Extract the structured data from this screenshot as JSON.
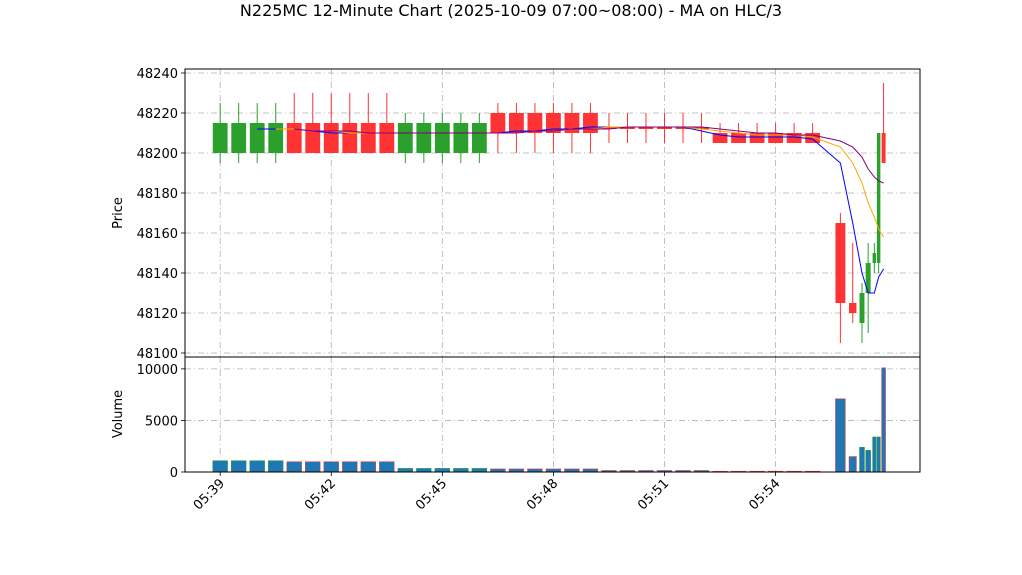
{
  "chart_data": {
    "type": "candlestick",
    "title": "N225MC 12-Minute Chart (2025-10-09 07:00~08:00) - MA on HLC/3",
    "y_label": "Price",
    "volume_label": "Volume",
    "x": [
      "05:39:00",
      "05:39:30",
      "05:40:00",
      "05:40:30",
      "05:41:00",
      "05:41:30",
      "05:42:00",
      "05:42:30",
      "05:43:00",
      "05:43:30",
      "05:44:00",
      "05:44:30",
      "05:45:00",
      "05:45:30",
      "05:46:00",
      "05:46:30",
      "05:47:00",
      "05:47:30",
      "05:48:00",
      "05:48:30",
      "05:49:00",
      "05:49:30",
      "05:50:00",
      "05:50:30",
      "05:51:00",
      "05:51:30",
      "05:52:00",
      "05:52:30",
      "05:53:00",
      "05:53:30",
      "05:54:00",
      "05:54:30",
      "05:55:00",
      "05:55:45",
      "05:56:05",
      "05:56:20",
      "05:56:30",
      "05:56:40",
      "05:56:47",
      "05:56:55"
    ],
    "open": [
      48200,
      48200,
      48200,
      48200,
      48215,
      48215,
      48215,
      48215,
      48215,
      48215,
      48200,
      48200,
      48200,
      48200,
      48200,
      48220,
      48220,
      48220,
      48220,
      48220,
      48220,
      48213,
      48213,
      48213,
      48213,
      48213,
      48213,
      48210,
      48210,
      48210,
      48210,
      48210,
      48210,
      48165,
      48125,
      48115,
      48130,
      48145,
      48145,
      48210
    ],
    "close": [
      48215,
      48215,
      48215,
      48215,
      48200,
      48200,
      48200,
      48200,
      48200,
      48200,
      48215,
      48215,
      48215,
      48215,
      48215,
      48210,
      48210,
      48210,
      48210,
      48210,
      48210,
      48212,
      48212,
      48212,
      48212,
      48212,
      48212,
      48205,
      48205,
      48205,
      48205,
      48205,
      48205,
      48125,
      48120,
      48130,
      48145,
      48150,
      48210,
      48195
    ],
    "high": [
      48225,
      48225,
      48225,
      48225,
      48230,
      48230,
      48230,
      48230,
      48230,
      48230,
      48220,
      48220,
      48220,
      48220,
      48220,
      48225,
      48225,
      48225,
      48225,
      48225,
      48225,
      48220,
      48220,
      48220,
      48220,
      48220,
      48220,
      48215,
      48215,
      48215,
      48215,
      48215,
      48215,
      48170,
      48155,
      48135,
      48155,
      48155,
      48210,
      48235
    ],
    "low": [
      48195,
      48195,
      48195,
      48195,
      48200,
      48200,
      48200,
      48200,
      48200,
      48200,
      48195,
      48195,
      48195,
      48195,
      48195,
      48200,
      48200,
      48200,
      48200,
      48200,
      48200,
      48205,
      48205,
      48205,
      48205,
      48205,
      48205,
      48205,
      48205,
      48205,
      48205,
      48205,
      48205,
      48105,
      48115,
      48105,
      48110,
      48140,
      48140,
      48195
    ],
    "volume": [
      1100,
      1100,
      1100,
      1100,
      1000,
      1000,
      1000,
      1000,
      1000,
      1000,
      350,
      350,
      350,
      350,
      350,
      300,
      300,
      300,
      300,
      300,
      300,
      150,
      150,
      150,
      150,
      150,
      150,
      80,
      80,
      80,
      80,
      80,
      80,
      7100,
      1500,
      2400,
      2100,
      3400,
      3400,
      10100
    ],
    "up_color": "#2ca02c",
    "down_color": "#ff3333",
    "volume_color": "#1f77b4",
    "series": [
      {
        "color": "#0000ff",
        "values": [
          null,
          null,
          48212,
          48212,
          48212,
          48211,
          48210,
          48210,
          48210,
          48210,
          48210,
          48210,
          48210,
          48210,
          48210,
          48210,
          48211,
          48211,
          48212,
          48212,
          48213,
          48213,
          48213,
          48213,
          48213,
          48213,
          48211,
          48209,
          48208,
          48208,
          48208,
          48208,
          48207,
          48195,
          48165,
          48140,
          48130,
          48130,
          48138,
          48142
        ]
      },
      {
        "color": "#ffa500",
        "values": [
          null,
          null,
          null,
          48212,
          48212,
          48211,
          48211,
          48210,
          48210,
          48210,
          48210,
          48210,
          48210,
          48210,
          48210,
          48210,
          48210,
          48211,
          48211,
          48212,
          48212,
          48213,
          48213,
          48213,
          48213,
          48213,
          48212,
          48211,
          48210,
          48209,
          48209,
          48209,
          48208,
          48203,
          48195,
          48185,
          48175,
          48168,
          48162,
          48158
        ]
      },
      {
        "color": "#800080",
        "values": [
          null,
          null,
          null,
          null,
          48212,
          48211,
          48211,
          48211,
          48210,
          48210,
          48210,
          48210,
          48210,
          48210,
          48210,
          48210,
          48210,
          48211,
          48211,
          48212,
          48212,
          48212,
          48213,
          48213,
          48213,
          48213,
          48213,
          48212,
          48211,
          48210,
          48210,
          48209,
          48209,
          48206,
          48203,
          48198,
          48192,
          48188,
          48186,
          48185
        ]
      }
    ],
    "xlim": [
      "05:38:03",
      "05:57:54"
    ],
    "xticks": [
      "05:39",
      "05:42",
      "05:45",
      "05:48",
      "05:51",
      "05:54"
    ],
    "ylim": [
      48098,
      48242
    ],
    "yticks": [
      48100,
      48120,
      48140,
      48160,
      48180,
      48200,
      48220,
      48240
    ],
    "volume_lim": [
      0,
      11150
    ],
    "volume_ticks": [
      0,
      5000,
      10000
    ],
    "grid": true
  }
}
